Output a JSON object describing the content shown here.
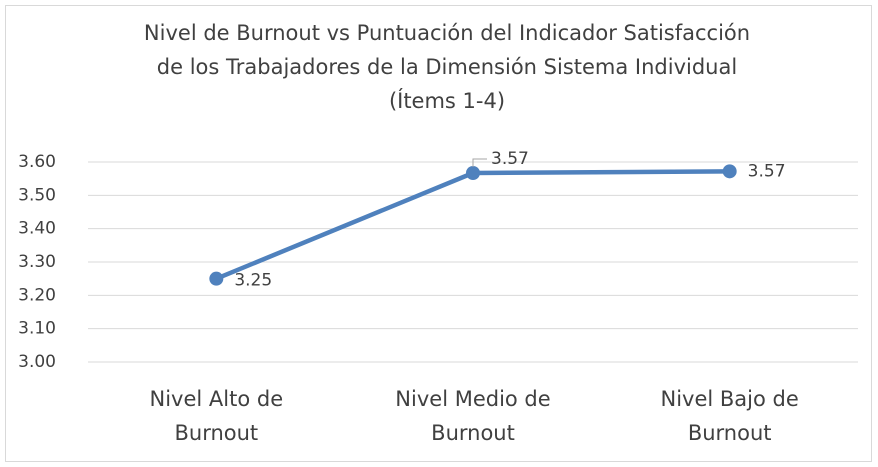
{
  "chart_data": {
    "type": "line",
    "title": [
      "Nivel de Burnout vs  Puntuación del Indicador Satisfacción",
      "de los Trabajadores de la Dimensión Sistema Individual",
      "(Ítems 1-4)"
    ],
    "categories": [
      "Nivel Alto de Burnout",
      "Nivel Medio de Burnout",
      "Nivel Bajo de Burnout"
    ],
    "values": [
      3.25,
      3.567,
      3.572
    ],
    "value_labels": [
      "3.25",
      "3.57",
      "3.57"
    ],
    "color": "#4f81bd",
    "ylim": [
      3.0,
      3.6
    ],
    "yticks": [
      {
        "value": 3.0,
        "label": "3.00"
      },
      {
        "value": 3.1,
        "label": "3.10"
      },
      {
        "value": 3.2,
        "label": "3.20"
      },
      {
        "value": 3.3,
        "label": "3.30"
      },
      {
        "value": 3.4,
        "label": "3.40"
      },
      {
        "value": 3.5,
        "label": "3.50"
      },
      {
        "value": 3.6,
        "label": "3.60"
      }
    ],
    "grid": true
  }
}
